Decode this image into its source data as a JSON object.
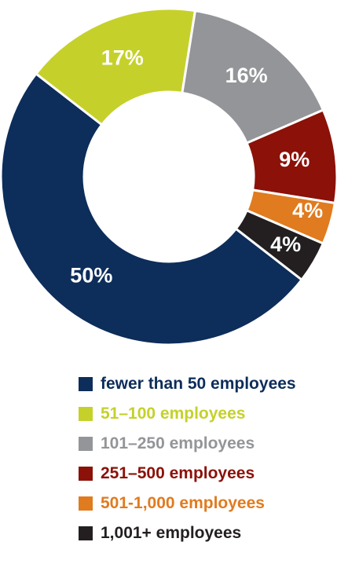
{
  "chart_data": {
    "type": "pie",
    "donut": true,
    "slices": [
      {
        "name": "fewer than 50 employees",
        "value": 50,
        "label": "50%",
        "color": "#0d2d5a"
      },
      {
        "name": "51–100 employees",
        "value": 17,
        "label": "17%",
        "color": "#c5d12a"
      },
      {
        "name": "101–250 employees",
        "value": 16,
        "label": "16%",
        "color": "#939598"
      },
      {
        "name": "251–500 employees",
        "value": 9,
        "label": "9%",
        "color": "#8b1109"
      },
      {
        "name": "501-1,000 employees",
        "value": 4,
        "label": "4%",
        "color": "#e07b1f"
      },
      {
        "name": "1,001+ employees",
        "value": 4,
        "label": "4%",
        "color": "#231f20"
      }
    ],
    "legend_position": "bottom"
  }
}
